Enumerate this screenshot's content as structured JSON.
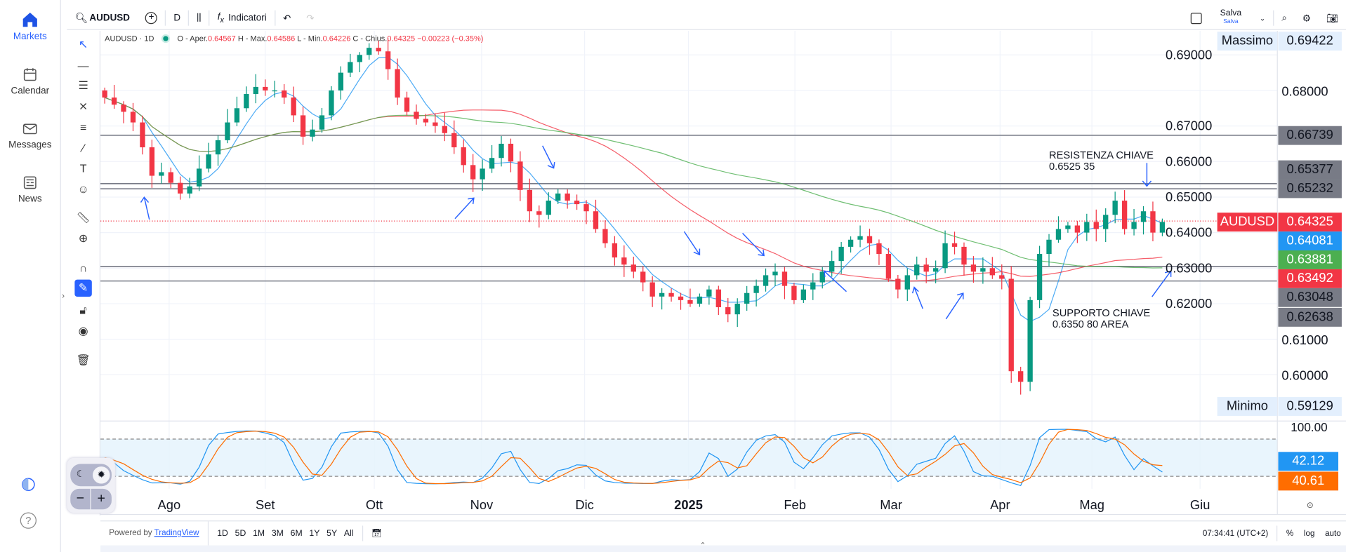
{
  "nav": {
    "items": [
      {
        "label": "Markets",
        "icon": "home-icon"
      },
      {
        "label": "Calendar",
        "icon": "calendar-icon"
      },
      {
        "label": "Messages",
        "icon": "mail-icon"
      },
      {
        "label": "News",
        "icon": "newspaper-icon"
      }
    ]
  },
  "toolbar": {
    "symbol": "AUDUSD",
    "interval": "D",
    "indicators": "Indicatori",
    "save": "Salva",
    "save_sub": "Salva"
  },
  "legend": {
    "title": "AUDUSD · 1D",
    "o_label": "O - Aper.",
    "o": "0.64567",
    "h_label": "H - Max.",
    "h": "0.64586",
    "l_label": "L - Min.",
    "l": "0.64226",
    "c_label": "C - Chius.",
    "c": "0.64325",
    "chg": "−0.00223 (−0.35%)"
  },
  "price_labels": {
    "max_label": "Massimo",
    "max": "0.69422",
    "min_label": "Minimo",
    "min": "0.59129",
    "symbol": "AUDUSD",
    "last": "0.64325",
    "ma_fast": "0.64081",
    "ma_slow": "0.63881",
    "ma_mid": "0.63492",
    "lines": [
      "0.66739",
      "0.65377",
      "0.65232",
      "0.63048",
      "0.62638"
    ],
    "osc_top": "100.00",
    "osc_k": "42.12",
    "osc_d": "40.61"
  },
  "annotations": {
    "resistance": [
      "RESISTENZA CHIAVE",
      "0.6525 35"
    ],
    "support": [
      "SUPPORTO CHIAVE",
      "0.6350 80 AREA"
    ]
  },
  "bottom": {
    "powered": "Powered by",
    "brand": "TradingView",
    "ranges": [
      "1D",
      "5D",
      "1M",
      "3M",
      "6M",
      "1Y",
      "5Y",
      "All"
    ],
    "time": "07:34:41 (UTC+2)",
    "pct": "%",
    "log": "log",
    "auto": "auto"
  },
  "colors": {
    "up": "#089981",
    "down": "#f23645",
    "ma_fast": "#2196f3",
    "ma_mid": "#f23645",
    "ma_slow": "#4caf50",
    "stoch_k": "#2196f3",
    "stoch_d": "#ff6d00"
  },
  "chart_data": {
    "type": "candlestick",
    "symbol": "AUDUSD",
    "interval": "1D",
    "ylim": [
      0.59,
      0.7
    ],
    "yticks": [
      "0.69000",
      "0.68000",
      "0.67000",
      "0.66000",
      "0.65000",
      "0.64000",
      "0.63000",
      "0.62000",
      "0.61000",
      "0.60000"
    ],
    "months": [
      "Ago",
      "Set",
      "Ott",
      "Nov",
      "Dic",
      "2025",
      "Feb",
      "Mar",
      "Apr",
      "Mag",
      "Giu"
    ],
    "hlines": [
      0.66739,
      0.65377,
      0.65232,
      0.63048,
      0.62638
    ],
    "last": 0.64325,
    "close": [
      0.678,
      0.676,
      0.674,
      0.671,
      0.664,
      0.656,
      0.657,
      0.654,
      0.651,
      0.653,
      0.658,
      0.662,
      0.666,
      0.671,
      0.675,
      0.679,
      0.681,
      0.68,
      0.68,
      0.678,
      0.673,
      0.667,
      0.669,
      0.673,
      0.68,
      0.685,
      0.688,
      0.69,
      0.692,
      0.691,
      0.686,
      0.678,
      0.674,
      0.672,
      0.671,
      0.67,
      0.668,
      0.664,
      0.659,
      0.655,
      0.658,
      0.661,
      0.665,
      0.66,
      0.652,
      0.646,
      0.645,
      0.649,
      0.651,
      0.649,
      0.648,
      0.646,
      0.641,
      0.637,
      0.633,
      0.631,
      0.629,
      0.626,
      0.622,
      0.623,
      0.622,
      0.621,
      0.62,
      0.622,
      0.624,
      0.619,
      0.617,
      0.62,
      0.623,
      0.625,
      0.628,
      0.629,
      0.625,
      0.621,
      0.624,
      0.626,
      0.629,
      0.632,
      0.636,
      0.638,
      0.639,
      0.637,
      0.634,
      0.627,
      0.624,
      0.628,
      0.631,
      0.629,
      0.63,
      0.637,
      0.636,
      0.631,
      0.629,
      0.63,
      0.628,
      0.627,
      0.601,
      0.598,
      0.621,
      0.634,
      0.638,
      0.641,
      0.642,
      0.64,
      0.643,
      0.641,
      0.645,
      0.649,
      0.641,
      0.643,
      0.646,
      0.64,
      0.643
    ],
    "oscillator": {
      "type": "stochastic",
      "range": [
        0,
        100
      ],
      "bands": [
        80,
        20
      ],
      "k": 42.12,
      "d": 40.61
    }
  }
}
